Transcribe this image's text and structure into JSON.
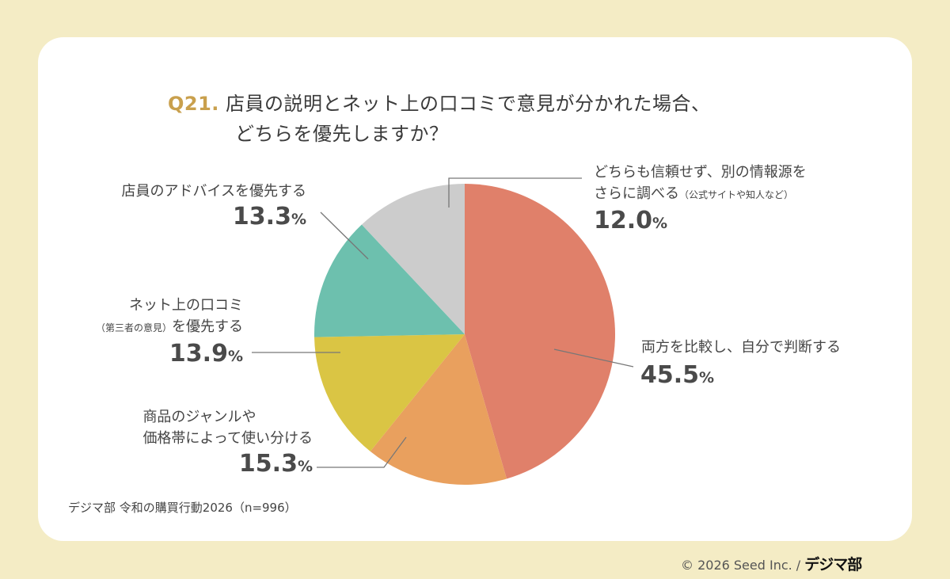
{
  "chart_data": {
    "type": "pie",
    "title_prefix": "Q21.",
    "title_line1": "店員の説明とネット上の口コミで意見が分かれた場合、",
    "title_line2": "どちらを優先しますか？",
    "start": "top",
    "direction": "clockwise",
    "slices": [
      {
        "label": "両方を比較し、自分で判断する",
        "note": "",
        "value": 45.5,
        "display": "45.5",
        "color": "#E0806A"
      },
      {
        "label": "商品のジャンルや価格帯によって使い分ける",
        "line1": "商品のジャンルや",
        "line2": "価格帯によって使い分ける",
        "value": 15.3,
        "display": "15.3",
        "color": "#E9A05E"
      },
      {
        "label": "ネット上の口コミ（第三者の意見）を優先する",
        "line1": "ネット上の口コミ",
        "note": "（第三者の意見）",
        "line2": "を優先する",
        "value": 13.9,
        "display": "13.9",
        "color": "#DAC544"
      },
      {
        "label": "店員のアドバイスを優先する",
        "value": 13.3,
        "display": "13.3",
        "color": "#6DC0AE"
      },
      {
        "label": "どちらも信頼せず、別の情報源をさらに調べる",
        "line1": "どちらも信頼せず、別の情報源を",
        "line2": "さらに調べる",
        "note": "（公式サイトや知人など）",
        "value": 12.0,
        "display": "12.0",
        "color": "#CCCCCC"
      }
    ],
    "unit": "%"
  },
  "source": "デジマ部 令和の購買行動2026（n=996）",
  "copyright": "© 2026 Seed Inc. /",
  "logo": "デジマ部"
}
